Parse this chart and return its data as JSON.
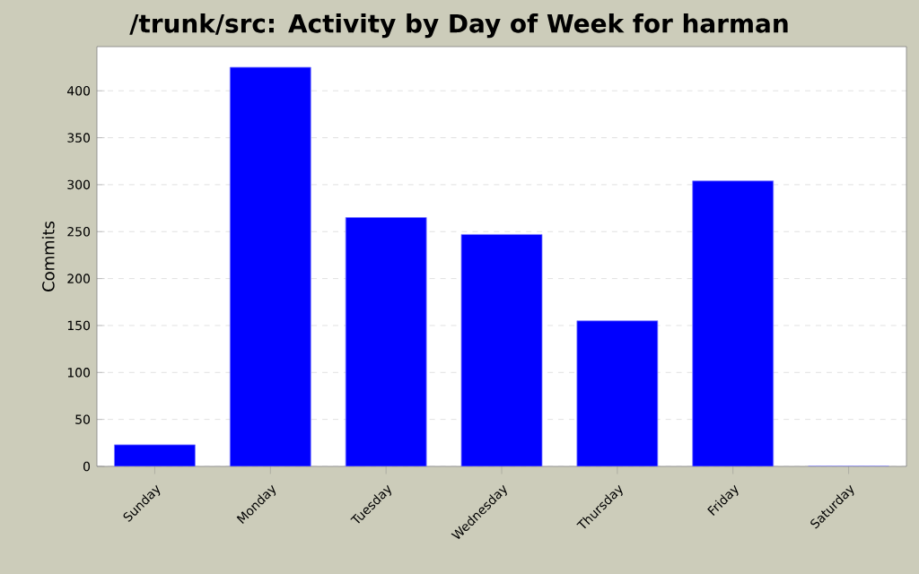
{
  "chart_data": {
    "type": "bar",
    "title": "/trunk/src: Activity by Day of Week for harman",
    "ylabel": "Commits",
    "categories": [
      "Sunday",
      "Monday",
      "Tuesday",
      "Wednesday",
      "Thursday",
      "Friday",
      "Saturday"
    ],
    "values": [
      23,
      425,
      265,
      247,
      155,
      304,
      0
    ],
    "color": "#0000ff",
    "ylim": [
      0,
      447
    ],
    "yticks": [
      0,
      50,
      100,
      150,
      200,
      250,
      300,
      350,
      400
    ],
    "grid": "y"
  }
}
